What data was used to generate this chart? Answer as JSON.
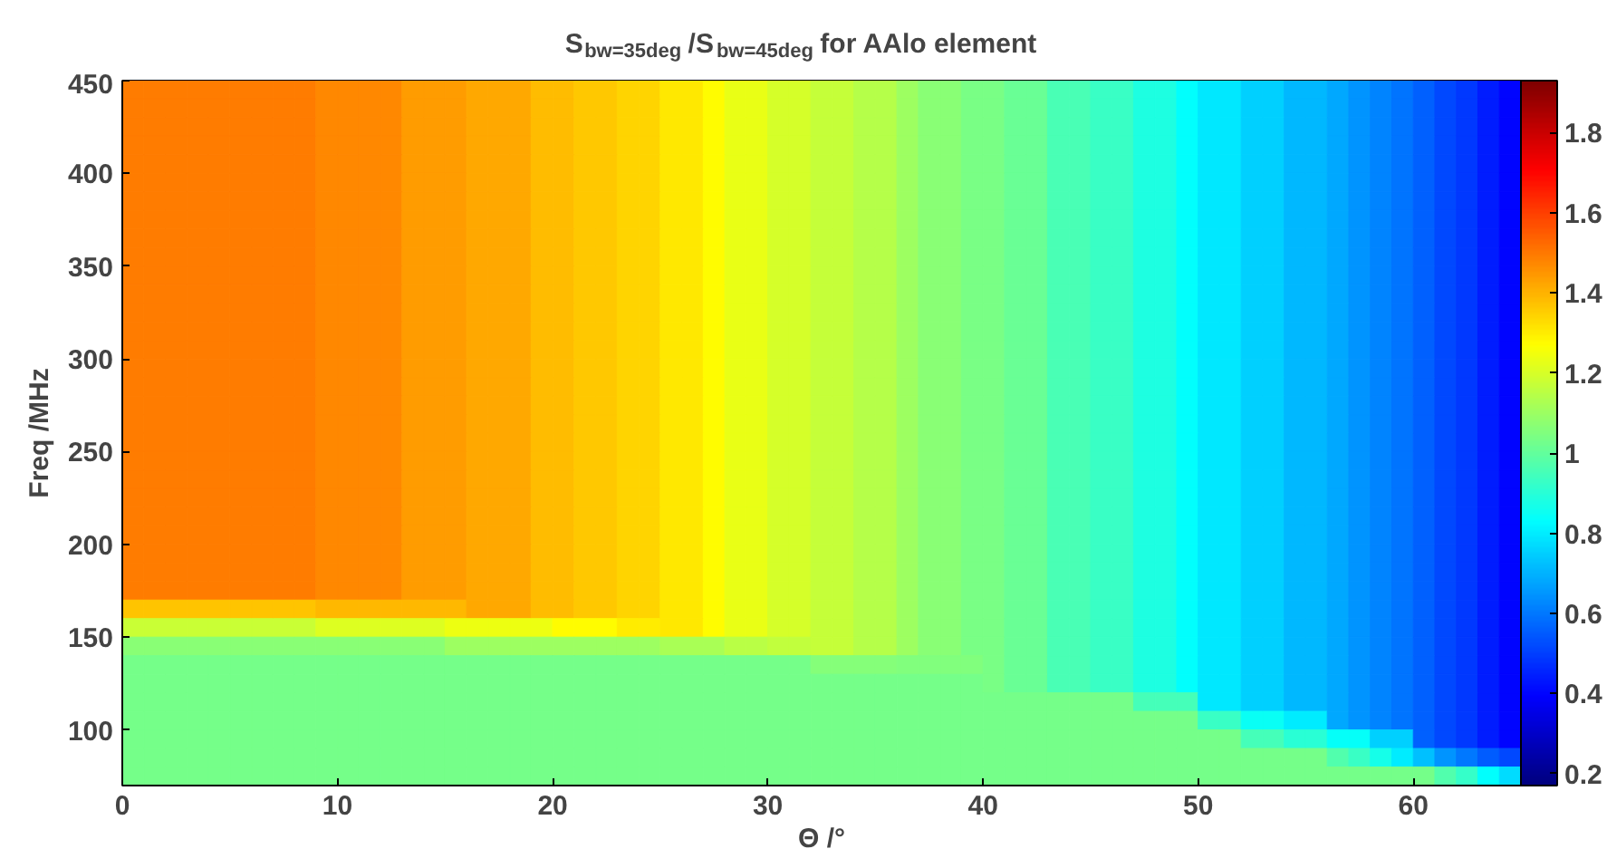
{
  "chart_data": {
    "type": "heatmap",
    "title": "S$_{bw=35deg}$/S$_{bw=45deg}$ for AAlo element",
    "xlabel": "Θ /°",
    "ylabel": "Freq /MHz",
    "xlim": [
      0,
      65
    ],
    "xticks": [
      0,
      10,
      20,
      30,
      40,
      50,
      60
    ],
    "ylim": [
      70,
      450
    ],
    "yticks": [
      100,
      150,
      200,
      250,
      300,
      350,
      400,
      450
    ],
    "clim": [
      0.17,
      1.93
    ],
    "cticks": [
      0.2,
      0.4,
      0.6,
      0.8,
      1,
      1.2,
      1.4,
      1.6,
      1.8
    ],
    "cells": [
      [
        1.49,
        1.49,
        1.49,
        1.49,
        1.49,
        1.49,
        1.49,
        1.49,
        1.49,
        1.47,
        1.47,
        1.47,
        1.47,
        1.44,
        1.44,
        1.44,
        1.42,
        1.42,
        1.42,
        1.38,
        1.38,
        1.36,
        1.36,
        1.34,
        1.34,
        1.31,
        1.31,
        1.27,
        1.23,
        1.23,
        1.2,
        1.2,
        1.17,
        1.17,
        1.14,
        1.14,
        1.1,
        1.07,
        1.07,
        1.04,
        1.04,
        1.01,
        1.01,
        0.96,
        0.96,
        0.93,
        0.93,
        0.88,
        0.88,
        0.83,
        0.79,
        0.79,
        0.75,
        0.75,
        0.71,
        0.71,
        0.68,
        0.65,
        0.62,
        0.59,
        0.56,
        0.52,
        0.49,
        0.44,
        0.4
      ],
      [
        1.49,
        1.49,
        1.49,
        1.49,
        1.49,
        1.49,
        1.49,
        1.49,
        1.49,
        1.47,
        1.47,
        1.47,
        1.47,
        1.44,
        1.44,
        1.44,
        1.42,
        1.42,
        1.42,
        1.38,
        1.38,
        1.36,
        1.36,
        1.34,
        1.34,
        1.31,
        1.31,
        1.27,
        1.23,
        1.23,
        1.2,
        1.2,
        1.17,
        1.17,
        1.14,
        1.14,
        1.1,
        1.07,
        1.07,
        1.04,
        1.04,
        1.01,
        1.01,
        0.96,
        0.96,
        0.93,
        0.93,
        0.88,
        0.88,
        0.83,
        0.79,
        0.79,
        0.75,
        0.75,
        0.71,
        0.71,
        0.68,
        0.65,
        0.62,
        0.59,
        0.56,
        0.52,
        0.49,
        0.44,
        0.4
      ],
      [
        1.49,
        1.49,
        1.49,
        1.49,
        1.49,
        1.49,
        1.49,
        1.49,
        1.49,
        1.47,
        1.47,
        1.47,
        1.47,
        1.44,
        1.44,
        1.44,
        1.42,
        1.42,
        1.42,
        1.38,
        1.38,
        1.36,
        1.36,
        1.34,
        1.34,
        1.31,
        1.31,
        1.27,
        1.23,
        1.23,
        1.2,
        1.2,
        1.17,
        1.17,
        1.14,
        1.14,
        1.1,
        1.07,
        1.07,
        1.04,
        1.04,
        1.01,
        1.01,
        0.96,
        0.96,
        0.93,
        0.93,
        0.88,
        0.88,
        0.83,
        0.79,
        0.79,
        0.75,
        0.75,
        0.71,
        0.71,
        0.68,
        0.65,
        0.62,
        0.59,
        0.56,
        0.52,
        0.49,
        0.44,
        0.4
      ],
      [
        1.49,
        1.49,
        1.49,
        1.49,
        1.49,
        1.49,
        1.49,
        1.49,
        1.49,
        1.47,
        1.47,
        1.47,
        1.47,
        1.44,
        1.44,
        1.44,
        1.42,
        1.42,
        1.42,
        1.38,
        1.38,
        1.36,
        1.36,
        1.34,
        1.34,
        1.31,
        1.31,
        1.27,
        1.23,
        1.23,
        1.2,
        1.2,
        1.17,
        1.17,
        1.14,
        1.14,
        1.1,
        1.07,
        1.07,
        1.04,
        1.04,
        1.01,
        1.01,
        0.96,
        0.96,
        0.93,
        0.93,
        0.88,
        0.88,
        0.83,
        0.79,
        0.79,
        0.75,
        0.75,
        0.71,
        0.71,
        0.68,
        0.65,
        0.62,
        0.59,
        0.56,
        0.52,
        0.49,
        0.44,
        0.4
      ],
      [
        1.49,
        1.49,
        1.49,
        1.49,
        1.49,
        1.49,
        1.49,
        1.49,
        1.49,
        1.47,
        1.47,
        1.47,
        1.47,
        1.44,
        1.44,
        1.44,
        1.42,
        1.42,
        1.42,
        1.38,
        1.38,
        1.36,
        1.36,
        1.34,
        1.34,
        1.31,
        1.31,
        1.27,
        1.23,
        1.23,
        1.2,
        1.2,
        1.17,
        1.17,
        1.14,
        1.14,
        1.1,
        1.07,
        1.07,
        1.04,
        1.04,
        1.01,
        1.01,
        0.96,
        0.96,
        0.93,
        0.93,
        0.88,
        0.88,
        0.83,
        0.79,
        0.79,
        0.75,
        0.75,
        0.71,
        0.71,
        0.68,
        0.65,
        0.62,
        0.59,
        0.56,
        0.52,
        0.49,
        0.44,
        0.4
      ],
      [
        1.49,
        1.49,
        1.49,
        1.49,
        1.49,
        1.49,
        1.49,
        1.49,
        1.49,
        1.47,
        1.47,
        1.47,
        1.47,
        1.44,
        1.44,
        1.44,
        1.42,
        1.42,
        1.42,
        1.38,
        1.38,
        1.36,
        1.36,
        1.34,
        1.34,
        1.31,
        1.31,
        1.27,
        1.23,
        1.23,
        1.2,
        1.2,
        1.17,
        1.17,
        1.14,
        1.14,
        1.1,
        1.07,
        1.07,
        1.04,
        1.04,
        1.01,
        1.01,
        0.96,
        0.96,
        0.93,
        0.93,
        0.88,
        0.88,
        0.83,
        0.79,
        0.79,
        0.75,
        0.75,
        0.71,
        0.71,
        0.68,
        0.65,
        0.62,
        0.59,
        0.56,
        0.52,
        0.49,
        0.44,
        0.4
      ],
      [
        1.49,
        1.49,
        1.49,
        1.49,
        1.49,
        1.49,
        1.49,
        1.49,
        1.49,
        1.47,
        1.47,
        1.47,
        1.47,
        1.44,
        1.44,
        1.44,
        1.42,
        1.42,
        1.42,
        1.38,
        1.38,
        1.36,
        1.36,
        1.34,
        1.34,
        1.31,
        1.31,
        1.27,
        1.23,
        1.23,
        1.2,
        1.2,
        1.17,
        1.17,
        1.14,
        1.14,
        1.1,
        1.07,
        1.07,
        1.04,
        1.04,
        1.01,
        1.01,
        0.96,
        0.96,
        0.93,
        0.93,
        0.88,
        0.88,
        0.83,
        0.79,
        0.79,
        0.75,
        0.75,
        0.71,
        0.71,
        0.68,
        0.65,
        0.62,
        0.59,
        0.56,
        0.52,
        0.49,
        0.44,
        0.4
      ],
      [
        1.49,
        1.49,
        1.49,
        1.49,
        1.49,
        1.49,
        1.49,
        1.49,
        1.49,
        1.47,
        1.47,
        1.47,
        1.47,
        1.44,
        1.44,
        1.44,
        1.42,
        1.42,
        1.42,
        1.38,
        1.38,
        1.36,
        1.36,
        1.34,
        1.34,
        1.31,
        1.31,
        1.27,
        1.23,
        1.23,
        1.2,
        1.2,
        1.17,
        1.17,
        1.14,
        1.14,
        1.1,
        1.07,
        1.07,
        1.04,
        1.04,
        1.01,
        1.01,
        0.96,
        0.96,
        0.93,
        0.93,
        0.88,
        0.88,
        0.83,
        0.79,
        0.79,
        0.75,
        0.75,
        0.71,
        0.71,
        0.68,
        0.65,
        0.62,
        0.59,
        0.56,
        0.52,
        0.49,
        0.44,
        0.4
      ],
      [
        1.49,
        1.49,
        1.49,
        1.49,
        1.49,
        1.49,
        1.49,
        1.49,
        1.49,
        1.47,
        1.47,
        1.47,
        1.47,
        1.44,
        1.44,
        1.44,
        1.42,
        1.42,
        1.42,
        1.38,
        1.38,
        1.36,
        1.36,
        1.34,
        1.34,
        1.31,
        1.31,
        1.27,
        1.23,
        1.23,
        1.2,
        1.2,
        1.17,
        1.17,
        1.14,
        1.14,
        1.1,
        1.07,
        1.07,
        1.04,
        1.04,
        1.01,
        1.01,
        0.96,
        0.96,
        0.93,
        0.93,
        0.88,
        0.88,
        0.83,
        0.79,
        0.79,
        0.75,
        0.75,
        0.71,
        0.71,
        0.68,
        0.65,
        0.62,
        0.59,
        0.56,
        0.52,
        0.49,
        0.44,
        0.4
      ],
      [
        1.49,
        1.49,
        1.49,
        1.49,
        1.49,
        1.49,
        1.49,
        1.49,
        1.49,
        1.47,
        1.47,
        1.47,
        1.47,
        1.44,
        1.44,
        1.44,
        1.42,
        1.42,
        1.42,
        1.38,
        1.38,
        1.36,
        1.36,
        1.34,
        1.34,
        1.31,
        1.31,
        1.27,
        1.23,
        1.23,
        1.2,
        1.2,
        1.17,
        1.17,
        1.14,
        1.14,
        1.1,
        1.07,
        1.07,
        1.04,
        1.04,
        1.01,
        1.01,
        0.96,
        0.96,
        0.93,
        0.93,
        0.88,
        0.88,
        0.83,
        0.79,
        0.79,
        0.75,
        0.75,
        0.71,
        0.71,
        0.68,
        0.65,
        0.62,
        0.59,
        0.56,
        0.52,
        0.49,
        0.44,
        0.4
      ],
      [
        1.49,
        1.49,
        1.49,
        1.49,
        1.49,
        1.49,
        1.49,
        1.49,
        1.49,
        1.47,
        1.47,
        1.47,
        1.47,
        1.44,
        1.44,
        1.44,
        1.42,
        1.42,
        1.42,
        1.38,
        1.38,
        1.36,
        1.36,
        1.34,
        1.34,
        1.31,
        1.31,
        1.27,
        1.23,
        1.23,
        1.2,
        1.2,
        1.17,
        1.17,
        1.14,
        1.14,
        1.1,
        1.07,
        1.07,
        1.04,
        1.04,
        1.01,
        1.01,
        0.96,
        0.96,
        0.93,
        0.93,
        0.88,
        0.88,
        0.83,
        0.79,
        0.79,
        0.75,
        0.75,
        0.71,
        0.71,
        0.68,
        0.65,
        0.62,
        0.59,
        0.56,
        0.52,
        0.49,
        0.44,
        0.4
      ],
      [
        1.49,
        1.49,
        1.49,
        1.49,
        1.49,
        1.49,
        1.49,
        1.49,
        1.49,
        1.47,
        1.47,
        1.47,
        1.47,
        1.44,
        1.44,
        1.44,
        1.42,
        1.42,
        1.42,
        1.38,
        1.38,
        1.36,
        1.36,
        1.34,
        1.34,
        1.31,
        1.31,
        1.27,
        1.23,
        1.23,
        1.2,
        1.2,
        1.17,
        1.17,
        1.14,
        1.14,
        1.1,
        1.07,
        1.07,
        1.04,
        1.04,
        1.01,
        1.01,
        0.96,
        0.96,
        0.93,
        0.93,
        0.88,
        0.88,
        0.83,
        0.79,
        0.79,
        0.75,
        0.75,
        0.71,
        0.71,
        0.68,
        0.65,
        0.62,
        0.59,
        0.56,
        0.52,
        0.49,
        0.44,
        0.4
      ],
      [
        1.49,
        1.49,
        1.49,
        1.49,
        1.49,
        1.49,
        1.49,
        1.49,
        1.49,
        1.47,
        1.47,
        1.47,
        1.47,
        1.44,
        1.44,
        1.44,
        1.42,
        1.42,
        1.42,
        1.38,
        1.38,
        1.36,
        1.36,
        1.34,
        1.34,
        1.31,
        1.31,
        1.27,
        1.23,
        1.23,
        1.2,
        1.2,
        1.17,
        1.17,
        1.14,
        1.14,
        1.1,
        1.07,
        1.07,
        1.04,
        1.04,
        1.01,
        1.01,
        0.96,
        0.96,
        0.93,
        0.93,
        0.88,
        0.88,
        0.83,
        0.79,
        0.79,
        0.75,
        0.75,
        0.71,
        0.71,
        0.68,
        0.65,
        0.62,
        0.59,
        0.56,
        0.52,
        0.49,
        0.44,
        0.4
      ],
      [
        1.49,
        1.49,
        1.49,
        1.49,
        1.49,
        1.49,
        1.49,
        1.49,
        1.49,
        1.47,
        1.47,
        1.47,
        1.47,
        1.44,
        1.44,
        1.44,
        1.42,
        1.42,
        1.42,
        1.38,
        1.38,
        1.36,
        1.36,
        1.34,
        1.34,
        1.31,
        1.31,
        1.27,
        1.23,
        1.23,
        1.2,
        1.2,
        1.17,
        1.17,
        1.14,
        1.14,
        1.1,
        1.07,
        1.07,
        1.04,
        1.04,
        1.01,
        1.01,
        0.96,
        0.96,
        0.93,
        0.93,
        0.88,
        0.88,
        0.83,
        0.79,
        0.79,
        0.75,
        0.75,
        0.71,
        0.71,
        0.68,
        0.65,
        0.62,
        0.59,
        0.56,
        0.52,
        0.49,
        0.44,
        0.4
      ],
      [
        1.49,
        1.49,
        1.49,
        1.49,
        1.49,
        1.49,
        1.49,
        1.49,
        1.49,
        1.47,
        1.47,
        1.47,
        1.47,
        1.44,
        1.44,
        1.44,
        1.42,
        1.42,
        1.42,
        1.38,
        1.38,
        1.36,
        1.36,
        1.34,
        1.34,
        1.31,
        1.31,
        1.27,
        1.23,
        1.23,
        1.2,
        1.2,
        1.17,
        1.17,
        1.14,
        1.14,
        1.1,
        1.07,
        1.07,
        1.04,
        1.04,
        1.01,
        1.01,
        0.96,
        0.96,
        0.93,
        0.93,
        0.88,
        0.88,
        0.83,
        0.79,
        0.79,
        0.75,
        0.75,
        0.71,
        0.71,
        0.68,
        0.65,
        0.62,
        0.59,
        0.56,
        0.52,
        0.49,
        0.44,
        0.4
      ],
      [
        1.49,
        1.49,
        1.49,
        1.49,
        1.49,
        1.49,
        1.49,
        1.49,
        1.49,
        1.47,
        1.47,
        1.47,
        1.47,
        1.44,
        1.44,
        1.44,
        1.42,
        1.42,
        1.42,
        1.38,
        1.38,
        1.36,
        1.36,
        1.34,
        1.34,
        1.31,
        1.31,
        1.27,
        1.23,
        1.23,
        1.2,
        1.2,
        1.17,
        1.17,
        1.14,
        1.14,
        1.1,
        1.07,
        1.07,
        1.04,
        1.04,
        1.01,
        1.01,
        0.96,
        0.96,
        0.93,
        0.93,
        0.88,
        0.88,
        0.83,
        0.79,
        0.79,
        0.75,
        0.75,
        0.71,
        0.71,
        0.68,
        0.65,
        0.62,
        0.59,
        0.56,
        0.52,
        0.49,
        0.44,
        0.4
      ],
      [
        1.49,
        1.49,
        1.49,
        1.49,
        1.49,
        1.49,
        1.49,
        1.49,
        1.49,
        1.47,
        1.47,
        1.47,
        1.47,
        1.44,
        1.44,
        1.44,
        1.42,
        1.42,
        1.42,
        1.38,
        1.38,
        1.36,
        1.36,
        1.34,
        1.34,
        1.31,
        1.31,
        1.27,
        1.23,
        1.23,
        1.2,
        1.2,
        1.17,
        1.17,
        1.14,
        1.14,
        1.1,
        1.07,
        1.07,
        1.04,
        1.04,
        1.01,
        1.01,
        0.96,
        0.96,
        0.93,
        0.93,
        0.88,
        0.88,
        0.83,
        0.79,
        0.79,
        0.75,
        0.75,
        0.71,
        0.71,
        0.68,
        0.65,
        0.62,
        0.59,
        0.56,
        0.52,
        0.49,
        0.44,
        0.4
      ],
      [
        1.49,
        1.49,
        1.49,
        1.49,
        1.49,
        1.49,
        1.49,
        1.49,
        1.49,
        1.47,
        1.47,
        1.47,
        1.47,
        1.44,
        1.44,
        1.44,
        1.42,
        1.42,
        1.42,
        1.38,
        1.38,
        1.36,
        1.36,
        1.34,
        1.34,
        1.31,
        1.31,
        1.27,
        1.23,
        1.23,
        1.2,
        1.2,
        1.17,
        1.17,
        1.14,
        1.14,
        1.1,
        1.07,
        1.07,
        1.04,
        1.04,
        1.01,
        1.01,
        0.96,
        0.96,
        0.93,
        0.93,
        0.88,
        0.88,
        0.83,
        0.79,
        0.79,
        0.75,
        0.75,
        0.71,
        0.71,
        0.68,
        0.65,
        0.62,
        0.59,
        0.56,
        0.52,
        0.49,
        0.44,
        0.4
      ],
      [
        1.49,
        1.49,
        1.49,
        1.49,
        1.49,
        1.49,
        1.49,
        1.49,
        1.49,
        1.47,
        1.47,
        1.47,
        1.47,
        1.44,
        1.44,
        1.44,
        1.42,
        1.42,
        1.42,
        1.38,
        1.38,
        1.36,
        1.36,
        1.34,
        1.34,
        1.31,
        1.31,
        1.27,
        1.23,
        1.23,
        1.2,
        1.2,
        1.17,
        1.17,
        1.14,
        1.14,
        1.1,
        1.07,
        1.07,
        1.04,
        1.04,
        1.01,
        1.01,
        0.96,
        0.96,
        0.93,
        0.93,
        0.88,
        0.88,
        0.83,
        0.79,
        0.79,
        0.75,
        0.75,
        0.71,
        0.71,
        0.68,
        0.65,
        0.62,
        0.59,
        0.56,
        0.52,
        0.49,
        0.44,
        0.4
      ],
      [
        1.49,
        1.49,
        1.49,
        1.49,
        1.49,
        1.49,
        1.49,
        1.49,
        1.49,
        1.47,
        1.47,
        1.47,
        1.47,
        1.44,
        1.44,
        1.44,
        1.42,
        1.42,
        1.42,
        1.38,
        1.38,
        1.36,
        1.36,
        1.34,
        1.34,
        1.31,
        1.31,
        1.27,
        1.23,
        1.23,
        1.2,
        1.2,
        1.17,
        1.17,
        1.14,
        1.14,
        1.1,
        1.07,
        1.07,
        1.04,
        1.04,
        1.01,
        1.01,
        0.96,
        0.96,
        0.93,
        0.93,
        0.88,
        0.88,
        0.83,
        0.79,
        0.79,
        0.75,
        0.75,
        0.71,
        0.71,
        0.68,
        0.65,
        0.62,
        0.59,
        0.56,
        0.52,
        0.49,
        0.44,
        0.4
      ],
      [
        1.49,
        1.49,
        1.49,
        1.49,
        1.49,
        1.49,
        1.49,
        1.49,
        1.49,
        1.47,
        1.47,
        1.47,
        1.47,
        1.44,
        1.44,
        1.44,
        1.42,
        1.42,
        1.42,
        1.38,
        1.38,
        1.36,
        1.36,
        1.34,
        1.34,
        1.31,
        1.31,
        1.27,
        1.23,
        1.23,
        1.2,
        1.2,
        1.17,
        1.17,
        1.14,
        1.14,
        1.1,
        1.07,
        1.07,
        1.04,
        1.04,
        1.01,
        1.01,
        0.96,
        0.96,
        0.93,
        0.93,
        0.88,
        0.88,
        0.83,
        0.79,
        0.79,
        0.75,
        0.75,
        0.71,
        0.71,
        0.68,
        0.65,
        0.62,
        0.59,
        0.56,
        0.52,
        0.49,
        0.44,
        0.4
      ],
      [
        1.49,
        1.49,
        1.49,
        1.49,
        1.49,
        1.49,
        1.49,
        1.49,
        1.49,
        1.47,
        1.47,
        1.47,
        1.47,
        1.44,
        1.44,
        1.44,
        1.42,
        1.42,
        1.42,
        1.38,
        1.38,
        1.36,
        1.36,
        1.34,
        1.34,
        1.31,
        1.31,
        1.27,
        1.23,
        1.23,
        1.2,
        1.2,
        1.17,
        1.17,
        1.14,
        1.14,
        1.1,
        1.07,
        1.07,
        1.04,
        1.04,
        1.01,
        1.01,
        0.96,
        0.96,
        0.93,
        0.93,
        0.88,
        0.88,
        0.83,
        0.79,
        0.79,
        0.75,
        0.75,
        0.71,
        0.71,
        0.68,
        0.65,
        0.62,
        0.59,
        0.56,
        0.52,
        0.49,
        0.44,
        0.4
      ],
      [
        1.49,
        1.49,
        1.49,
        1.49,
        1.49,
        1.49,
        1.49,
        1.49,
        1.49,
        1.47,
        1.47,
        1.47,
        1.47,
        1.44,
        1.44,
        1.44,
        1.42,
        1.42,
        1.42,
        1.38,
        1.38,
        1.36,
        1.36,
        1.34,
        1.34,
        1.31,
        1.31,
        1.27,
        1.23,
        1.23,
        1.2,
        1.2,
        1.17,
        1.17,
        1.14,
        1.14,
        1.1,
        1.07,
        1.07,
        1.04,
        1.04,
        1.01,
        1.01,
        0.96,
        0.96,
        0.93,
        0.93,
        0.88,
        0.88,
        0.83,
        0.79,
        0.79,
        0.75,
        0.75,
        0.71,
        0.71,
        0.68,
        0.65,
        0.62,
        0.59,
        0.56,
        0.52,
        0.49,
        0.44,
        0.4
      ],
      [
        1.49,
        1.49,
        1.49,
        1.49,
        1.49,
        1.49,
        1.49,
        1.49,
        1.49,
        1.47,
        1.47,
        1.47,
        1.47,
        1.44,
        1.44,
        1.44,
        1.42,
        1.42,
        1.42,
        1.38,
        1.38,
        1.36,
        1.36,
        1.34,
        1.34,
        1.31,
        1.31,
        1.27,
        1.23,
        1.23,
        1.2,
        1.2,
        1.17,
        1.17,
        1.14,
        1.14,
        1.1,
        1.07,
        1.07,
        1.04,
        1.04,
        1.01,
        1.01,
        0.96,
        0.96,
        0.93,
        0.93,
        0.88,
        0.88,
        0.83,
        0.79,
        0.79,
        0.75,
        0.75,
        0.71,
        0.71,
        0.68,
        0.65,
        0.62,
        0.59,
        0.56,
        0.52,
        0.49,
        0.44,
        0.4
      ],
      [
        1.49,
        1.49,
        1.49,
        1.49,
        1.49,
        1.49,
        1.49,
        1.49,
        1.49,
        1.47,
        1.47,
        1.47,
        1.47,
        1.44,
        1.44,
        1.44,
        1.42,
        1.42,
        1.42,
        1.38,
        1.38,
        1.36,
        1.36,
        1.34,
        1.34,
        1.31,
        1.31,
        1.27,
        1.23,
        1.23,
        1.2,
        1.2,
        1.17,
        1.17,
        1.14,
        1.14,
        1.1,
        1.07,
        1.07,
        1.04,
        1.04,
        1.01,
        1.01,
        0.96,
        0.96,
        0.93,
        0.93,
        0.88,
        0.88,
        0.83,
        0.79,
        0.79,
        0.75,
        0.75,
        0.71,
        0.71,
        0.68,
        0.65,
        0.62,
        0.59,
        0.56,
        0.52,
        0.49,
        0.44,
        0.4
      ],
      [
        1.49,
        1.49,
        1.49,
        1.49,
        1.49,
        1.49,
        1.49,
        1.49,
        1.49,
        1.47,
        1.47,
        1.47,
        1.47,
        1.44,
        1.44,
        1.44,
        1.42,
        1.42,
        1.42,
        1.38,
        1.38,
        1.36,
        1.36,
        1.34,
        1.34,
        1.31,
        1.31,
        1.27,
        1.23,
        1.23,
        1.2,
        1.2,
        1.17,
        1.17,
        1.14,
        1.14,
        1.1,
        1.07,
        1.07,
        1.04,
        1.04,
        1.01,
        1.01,
        0.96,
        0.96,
        0.93,
        0.93,
        0.88,
        0.88,
        0.83,
        0.79,
        0.79,
        0.75,
        0.75,
        0.71,
        0.71,
        0.68,
        0.65,
        0.62,
        0.59,
        0.56,
        0.52,
        0.49,
        0.44,
        0.4
      ],
      [
        1.49,
        1.49,
        1.49,
        1.49,
        1.49,
        1.49,
        1.49,
        1.49,
        1.49,
        1.47,
        1.47,
        1.47,
        1.47,
        1.44,
        1.44,
        1.44,
        1.42,
        1.42,
        1.42,
        1.38,
        1.38,
        1.36,
        1.36,
        1.34,
        1.34,
        1.31,
        1.31,
        1.27,
        1.23,
        1.23,
        1.2,
        1.2,
        1.17,
        1.17,
        1.14,
        1.14,
        1.1,
        1.07,
        1.07,
        1.04,
        1.04,
        1.01,
        1.01,
        0.96,
        0.96,
        0.93,
        0.93,
        0.88,
        0.88,
        0.83,
        0.79,
        0.79,
        0.75,
        0.75,
        0.71,
        0.71,
        0.68,
        0.65,
        0.62,
        0.59,
        0.56,
        0.52,
        0.49,
        0.44,
        0.4
      ],
      [
        1.49,
        1.49,
        1.49,
        1.49,
        1.49,
        1.49,
        1.49,
        1.49,
        1.49,
        1.47,
        1.47,
        1.47,
        1.47,
        1.44,
        1.44,
        1.44,
        1.42,
        1.42,
        1.42,
        1.38,
        1.38,
        1.36,
        1.36,
        1.34,
        1.34,
        1.31,
        1.31,
        1.27,
        1.23,
        1.23,
        1.2,
        1.2,
        1.17,
        1.17,
        1.14,
        1.14,
        1.1,
        1.07,
        1.07,
        1.04,
        1.04,
        1.01,
        1.01,
        0.96,
        0.96,
        0.93,
        0.93,
        0.88,
        0.88,
        0.83,
        0.79,
        0.79,
        0.75,
        0.75,
        0.71,
        0.71,
        0.68,
        0.65,
        0.62,
        0.59,
        0.56,
        0.52,
        0.49,
        0.44,
        0.4
      ],
      [
        1.37,
        1.37,
        1.37,
        1.37,
        1.37,
        1.37,
        1.37,
        1.37,
        1.37,
        1.39,
        1.39,
        1.39,
        1.39,
        1.39,
        1.39,
        1.39,
        1.42,
        1.42,
        1.42,
        1.38,
        1.38,
        1.36,
        1.36,
        1.34,
        1.34,
        1.31,
        1.31,
        1.27,
        1.23,
        1.23,
        1.2,
        1.2,
        1.17,
        1.17,
        1.14,
        1.14,
        1.1,
        1.07,
        1.07,
        1.04,
        1.04,
        1.01,
        1.01,
        0.96,
        0.96,
        0.93,
        0.93,
        0.88,
        0.88,
        0.83,
        0.79,
        0.79,
        0.75,
        0.75,
        0.71,
        0.71,
        0.68,
        0.65,
        0.62,
        0.59,
        0.56,
        0.52,
        0.49,
        0.44,
        0.4
      ],
      [
        1.18,
        1.18,
        1.18,
        1.18,
        1.18,
        1.18,
        1.18,
        1.18,
        1.18,
        1.21,
        1.21,
        1.21,
        1.21,
        1.21,
        1.21,
        1.24,
        1.24,
        1.24,
        1.24,
        1.24,
        1.27,
        1.27,
        1.27,
        1.3,
        1.3,
        1.31,
        1.31,
        1.27,
        1.23,
        1.23,
        1.2,
        1.2,
        1.17,
        1.17,
        1.14,
        1.14,
        1.1,
        1.07,
        1.07,
        1.04,
        1.04,
        1.01,
        1.01,
        0.96,
        0.96,
        0.93,
        0.93,
        0.88,
        0.88,
        0.83,
        0.79,
        0.79,
        0.75,
        0.75,
        0.71,
        0.71,
        0.68,
        0.65,
        0.62,
        0.59,
        0.56,
        0.52,
        0.49,
        0.44,
        0.4
      ],
      [
        1.07,
        1.07,
        1.07,
        1.07,
        1.07,
        1.07,
        1.07,
        1.07,
        1.07,
        1.07,
        1.07,
        1.07,
        1.07,
        1.07,
        1.07,
        1.1,
        1.1,
        1.1,
        1.1,
        1.1,
        1.1,
        1.1,
        1.1,
        1.1,
        1.1,
        1.12,
        1.12,
        1.12,
        1.15,
        1.15,
        1.16,
        1.16,
        1.17,
        1.17,
        1.14,
        1.14,
        1.1,
        1.07,
        1.07,
        1.04,
        1.04,
        1.01,
        1.01,
        0.96,
        0.96,
        0.93,
        0.93,
        0.88,
        0.88,
        0.83,
        0.79,
        0.79,
        0.75,
        0.75,
        0.71,
        0.71,
        0.68,
        0.65,
        0.62,
        0.59,
        0.56,
        0.52,
        0.49,
        0.44,
        0.4
      ],
      [
        1.03,
        1.03,
        1.03,
        1.03,
        1.03,
        1.03,
        1.03,
        1.03,
        1.03,
        1.03,
        1.03,
        1.03,
        1.03,
        1.03,
        1.03,
        1.03,
        1.03,
        1.03,
        1.03,
        1.03,
        1.03,
        1.03,
        1.03,
        1.03,
        1.03,
        1.03,
        1.03,
        1.03,
        1.03,
        1.03,
        1.03,
        1.03,
        1.06,
        1.06,
        1.06,
        1.06,
        1.05,
        1.05,
        1.05,
        1.05,
        1.04,
        1.01,
        1.01,
        0.96,
        0.96,
        0.93,
        0.93,
        0.88,
        0.88,
        0.83,
        0.79,
        0.79,
        0.75,
        0.75,
        0.71,
        0.71,
        0.68,
        0.65,
        0.62,
        0.59,
        0.56,
        0.52,
        0.49,
        0.44,
        0.4
      ],
      [
        1.03,
        1.03,
        1.03,
        1.03,
        1.03,
        1.03,
        1.03,
        1.03,
        1.03,
        1.03,
        1.03,
        1.03,
        1.03,
        1.03,
        1.03,
        1.03,
        1.03,
        1.03,
        1.03,
        1.03,
        1.03,
        1.03,
        1.03,
        1.03,
        1.03,
        1.03,
        1.03,
        1.03,
        1.03,
        1.03,
        1.03,
        1.03,
        1.03,
        1.03,
        1.03,
        1.03,
        1.03,
        1.03,
        1.03,
        1.03,
        1.04,
        1.01,
        1.01,
        0.96,
        0.96,
        0.93,
        0.93,
        0.88,
        0.88,
        0.83,
        0.79,
        0.79,
        0.75,
        0.75,
        0.71,
        0.71,
        0.68,
        0.65,
        0.62,
        0.59,
        0.56,
        0.52,
        0.49,
        0.44,
        0.4
      ],
      [
        1.03,
        1.03,
        1.03,
        1.03,
        1.03,
        1.03,
        1.03,
        1.03,
        1.03,
        1.03,
        1.03,
        1.03,
        1.03,
        1.03,
        1.03,
        1.03,
        1.03,
        1.03,
        1.03,
        1.03,
        1.03,
        1.03,
        1.03,
        1.03,
        1.03,
        1.03,
        1.03,
        1.03,
        1.03,
        1.03,
        1.03,
        1.03,
        1.03,
        1.03,
        1.03,
        1.03,
        1.03,
        1.03,
        1.03,
        1.03,
        1.03,
        1.03,
        1.03,
        1.03,
        1.03,
        1.03,
        1.03,
        0.95,
        0.95,
        0.95,
        0.79,
        0.79,
        0.75,
        0.75,
        0.71,
        0.71,
        0.68,
        0.65,
        0.62,
        0.59,
        0.56,
        0.52,
        0.49,
        0.44,
        0.4
      ],
      [
        1.03,
        1.03,
        1.03,
        1.03,
        1.03,
        1.03,
        1.03,
        1.03,
        1.03,
        1.03,
        1.03,
        1.03,
        1.03,
        1.03,
        1.03,
        1.03,
        1.03,
        1.03,
        1.03,
        1.03,
        1.03,
        1.03,
        1.03,
        1.03,
        1.03,
        1.03,
        1.03,
        1.03,
        1.03,
        1.03,
        1.03,
        1.03,
        1.03,
        1.03,
        1.03,
        1.03,
        1.03,
        1.03,
        1.03,
        1.03,
        1.03,
        1.03,
        1.03,
        1.03,
        1.03,
        1.03,
        1.03,
        1.03,
        1.03,
        1.03,
        0.93,
        0.93,
        0.85,
        0.85,
        0.8,
        0.8,
        0.68,
        0.65,
        0.62,
        0.59,
        0.56,
        0.52,
        0.49,
        0.44,
        0.4
      ],
      [
        1.03,
        1.03,
        1.03,
        1.03,
        1.03,
        1.03,
        1.03,
        1.03,
        1.03,
        1.03,
        1.03,
        1.03,
        1.03,
        1.03,
        1.03,
        1.03,
        1.03,
        1.03,
        1.03,
        1.03,
        1.03,
        1.03,
        1.03,
        1.03,
        1.03,
        1.03,
        1.03,
        1.03,
        1.03,
        1.03,
        1.03,
        1.03,
        1.03,
        1.03,
        1.03,
        1.03,
        1.03,
        1.03,
        1.03,
        1.03,
        1.03,
        1.03,
        1.03,
        1.03,
        1.03,
        1.03,
        1.03,
        1.03,
        1.03,
        1.03,
        1.03,
        1.03,
        0.95,
        0.95,
        0.9,
        0.9,
        0.84,
        0.84,
        0.75,
        0.75,
        0.56,
        0.52,
        0.49,
        0.44,
        0.4
      ],
      [
        1.03,
        1.03,
        1.03,
        1.03,
        1.03,
        1.03,
        1.03,
        1.03,
        1.03,
        1.03,
        1.03,
        1.03,
        1.03,
        1.03,
        1.03,
        1.03,
        1.03,
        1.03,
        1.03,
        1.03,
        1.03,
        1.03,
        1.03,
        1.03,
        1.03,
        1.03,
        1.03,
        1.03,
        1.03,
        1.03,
        1.03,
        1.03,
        1.03,
        1.03,
        1.03,
        1.03,
        1.03,
        1.03,
        1.03,
        1.03,
        1.03,
        1.03,
        1.03,
        1.03,
        1.03,
        1.03,
        1.03,
        1.03,
        1.03,
        1.03,
        1.03,
        1.03,
        1.03,
        1.03,
        1.03,
        1.03,
        0.97,
        0.93,
        0.87,
        0.8,
        0.72,
        0.65,
        0.6,
        0.55,
        0.52
      ],
      [
        1.03,
        1.03,
        1.03,
        1.03,
        1.03,
        1.03,
        1.03,
        1.03,
        1.03,
        1.03,
        1.03,
        1.03,
        1.03,
        1.03,
        1.03,
        1.03,
        1.03,
        1.03,
        1.03,
        1.03,
        1.03,
        1.03,
        1.03,
        1.03,
        1.03,
        1.03,
        1.03,
        1.03,
        1.03,
        1.03,
        1.03,
        1.03,
        1.03,
        1.03,
        1.03,
        1.03,
        1.03,
        1.03,
        1.03,
        1.03,
        1.03,
        1.03,
        1.03,
        1.03,
        1.03,
        1.03,
        1.03,
        1.03,
        1.03,
        1.03,
        1.03,
        1.03,
        1.03,
        1.03,
        1.03,
        1.03,
        1.03,
        1.03,
        1.03,
        1.03,
        1.03,
        0.97,
        0.92,
        0.83,
        0.77
      ]
    ]
  }
}
